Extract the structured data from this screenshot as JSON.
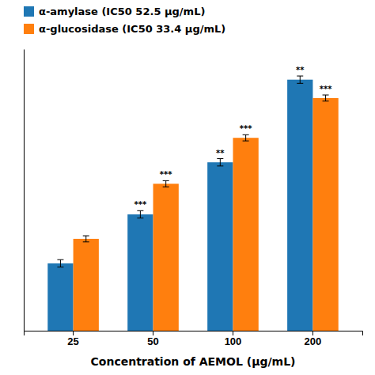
{
  "chart_data": {
    "type": "bar",
    "xlabel": "Concentration of AEMOL (μg/mL)",
    "categories": [
      "25",
      "50",
      "100",
      "200"
    ],
    "series": [
      {
        "name": "α-amylase (IC50 52.5 μg/mL)",
        "values": [
          22,
          38,
          55,
          82
        ],
        "errors": [
          1.2,
          1.2,
          1.2,
          1.2
        ],
        "stars": [
          null,
          "***",
          "**",
          "**"
        ]
      },
      {
        "name": "α-glucosidase (IC50 33.4 μg/mL)",
        "values": [
          30,
          48,
          63,
          76
        ],
        "errors": [
          1.0,
          1.0,
          1.0,
          1.0
        ],
        "stars": [
          null,
          "***",
          "***",
          "***"
        ]
      }
    ],
    "ylim": [
      0,
      92
    ],
    "yticks": [],
    "tick_labels": "x",
    "legend": "upper left"
  }
}
